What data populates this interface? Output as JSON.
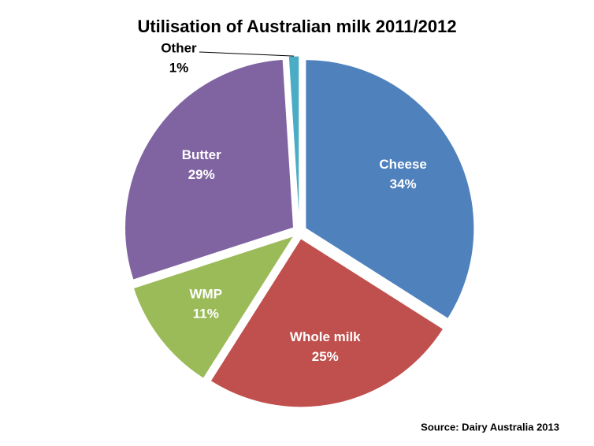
{
  "chart_data": {
    "type": "pie",
    "title": "Utilisation of Australian milk 2011/2012",
    "categories": [
      "Cheese",
      "Whole milk",
      "WMP",
      "Butter",
      "Other"
    ],
    "values": [
      34,
      25,
      11,
      29,
      1
    ],
    "value_labels": [
      "34%",
      "25%",
      "11%",
      "29%",
      "1%"
    ],
    "colors": [
      "#4f81bd",
      "#c0504d",
      "#9bbb59",
      "#8064a2",
      "#4bacc6"
    ],
    "source": "Source: Dairy Australia 2013"
  }
}
